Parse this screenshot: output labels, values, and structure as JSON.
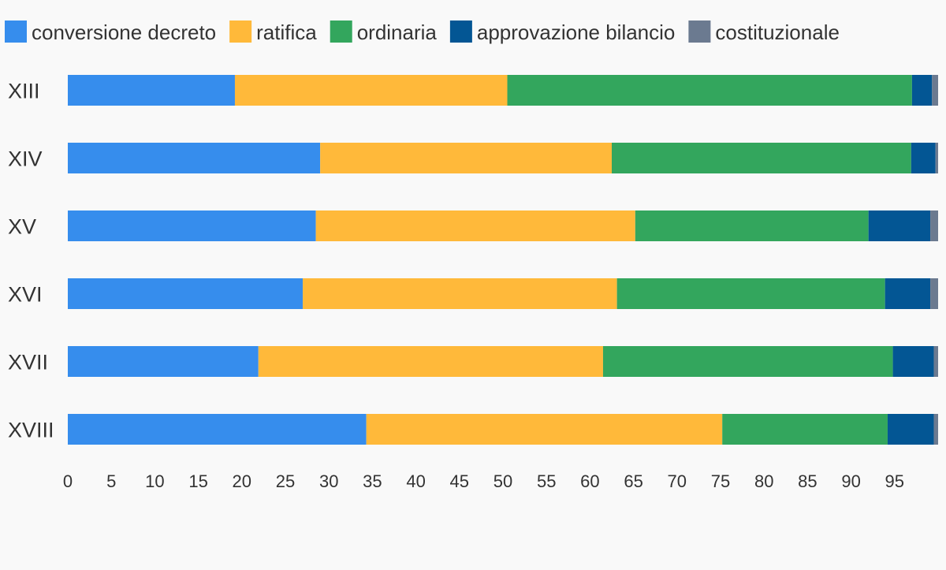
{
  "chart_data": {
    "type": "bar",
    "orientation": "horizontal",
    "stacked": true,
    "categories": [
      "XIII",
      "XIV",
      "XV",
      "XVI",
      "XVII",
      "XVIII"
    ],
    "series": [
      {
        "name": "conversione decreto",
        "color": "#368ded",
        "values": [
          19.2,
          29.0,
          28.5,
          27.0,
          21.9,
          34.3
        ]
      },
      {
        "name": "ratifica",
        "color": "#ffb93a",
        "values": [
          31.3,
          33.5,
          36.7,
          36.1,
          39.6,
          40.9
        ]
      },
      {
        "name": "ordinaria",
        "color": "#33a65d",
        "values": [
          46.5,
          34.4,
          26.8,
          30.8,
          33.3,
          19.0
        ]
      },
      {
        "name": "approvazione bilancio",
        "color": "#035694",
        "values": [
          2.3,
          2.8,
          7.1,
          5.2,
          4.7,
          5.3
        ]
      },
      {
        "name": "costituzionale",
        "color": "#6b7a90",
        "values": [
          0.7,
          0.3,
          0.9,
          0.9,
          0.5,
          0.5
        ]
      }
    ],
    "xlim": [
      0,
      100
    ],
    "xticks": [
      0,
      5,
      10,
      15,
      20,
      25,
      30,
      35,
      40,
      45,
      50,
      55,
      60,
      65,
      70,
      75,
      80,
      85,
      90,
      95
    ],
    "title": "",
    "xlabel": "",
    "ylabel": "",
    "grid": false,
    "legend_position": "top-left"
  }
}
